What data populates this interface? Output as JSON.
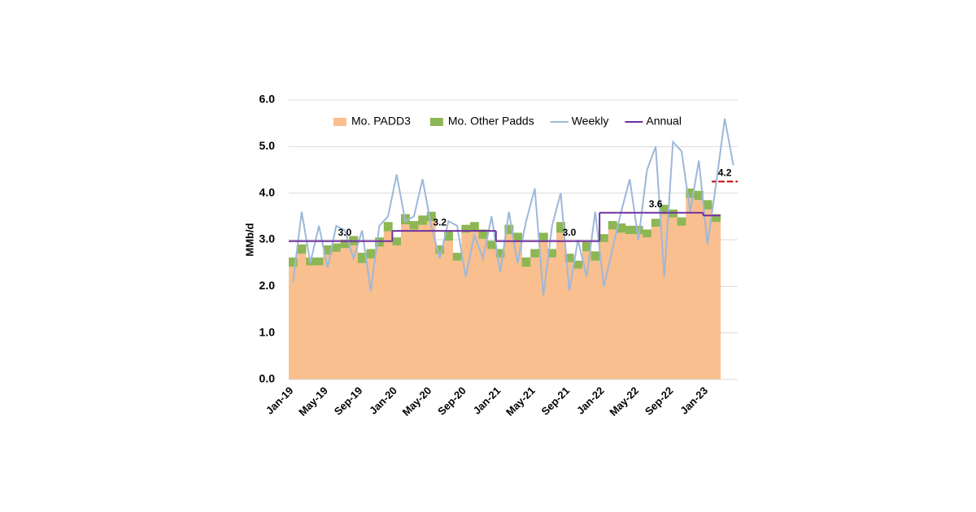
{
  "chart_data": {
    "type": "stacked-area-line",
    "y_label": "MMb/d",
    "categories": [
      "Jan-19",
      null,
      null,
      null,
      "May-19",
      null,
      null,
      null,
      "Sep-19",
      null,
      null,
      null,
      "Jan-20",
      null,
      null,
      null,
      "May-20",
      null,
      null,
      null,
      "Sep-20",
      null,
      null,
      null,
      "Jan-21",
      null,
      null,
      null,
      "May-21",
      null,
      null,
      null,
      "Sep-21",
      null,
      null,
      null,
      "Jan-22",
      null,
      null,
      null,
      "May-22",
      null,
      null,
      null,
      "Sep-22",
      null,
      null,
      null,
      "Jan-23",
      null,
      null,
      null
    ],
    "series": [
      {
        "name": "Mo. PADD3",
        "kind": "stacked-area",
        "color": "#f9bf8f",
        "values": [
          2.42,
          2.7,
          2.45,
          2.45,
          2.68,
          2.74,
          2.82,
          2.88,
          2.5,
          2.6,
          2.85,
          3.18,
          2.88,
          3.33,
          3.22,
          3.32,
          3.4,
          2.7,
          2.98,
          2.55,
          3.15,
          3.2,
          3.02,
          2.8,
          2.62,
          3.12,
          2.95,
          2.42,
          2.62,
          2.95,
          2.62,
          3.15,
          2.52,
          2.38,
          2.75,
          2.55,
          2.95,
          3.22,
          3.15,
          3.12,
          3.12,
          3.05,
          3.28,
          3.55,
          3.48,
          3.3,
          3.9,
          3.85,
          3.65,
          3.38,
          null,
          null
        ]
      },
      {
        "name": "Mo. Other Padds",
        "kind": "stacked-area",
        "color": "#8db654",
        "values": [
          0.2,
          0.2,
          0.17,
          0.17,
          0.2,
          0.18,
          0.18,
          0.2,
          0.22,
          0.2,
          0.2,
          0.2,
          0.17,
          0.22,
          0.18,
          0.2,
          0.2,
          0.18,
          0.22,
          0.17,
          0.17,
          0.18,
          0.2,
          0.18,
          0.18,
          0.2,
          0.2,
          0.2,
          0.18,
          0.2,
          0.18,
          0.23,
          0.18,
          0.17,
          0.2,
          0.2,
          0.17,
          0.18,
          0.2,
          0.18,
          0.18,
          0.17,
          0.17,
          0.2,
          0.17,
          0.18,
          0.2,
          0.2,
          0.2,
          0.17,
          null,
          null
        ]
      },
      {
        "name": "Weekly",
        "kind": "line",
        "color": "#9db8d9",
        "values": [
          2.1,
          3.6,
          2.5,
          3.3,
          2.4,
          3.3,
          3.2,
          2.6,
          3.2,
          1.9,
          3.3,
          3.5,
          4.4,
          3.4,
          3.5,
          4.3,
          3.3,
          2.6,
          3.4,
          3.3,
          2.2,
          3.1,
          2.6,
          3.5,
          2.3,
          3.6,
          2.5,
          3.4,
          4.1,
          1.8,
          3.3,
          4.0,
          1.9,
          3.0,
          2.2,
          3.6,
          2.0,
          2.8,
          3.6,
          4.3,
          3.0,
          4.5,
          5.0,
          2.2,
          5.1,
          4.9,
          3.6,
          4.7,
          2.9,
          4.2,
          5.6,
          4.6
        ]
      },
      {
        "name": "Annual",
        "kind": "step",
        "color": "#7030a0",
        "values": [
          2.97,
          2.97,
          2.97,
          2.97,
          2.97,
          2.97,
          2.97,
          2.97,
          2.97,
          2.97,
          2.97,
          2.97,
          3.19,
          3.19,
          3.19,
          3.19,
          3.19,
          3.19,
          3.19,
          3.19,
          3.19,
          3.19,
          3.19,
          3.19,
          2.97,
          2.97,
          2.97,
          2.97,
          2.97,
          2.97,
          2.97,
          2.97,
          2.97,
          2.97,
          2.97,
          2.97,
          3.58,
          3.58,
          3.58,
          3.58,
          3.58,
          3.58,
          3.58,
          3.58,
          3.58,
          3.58,
          3.58,
          3.58,
          3.52,
          3.52,
          null,
          null
        ],
        "value_labels": [
          null,
          null,
          null,
          null,
          null,
          null,
          "3.0",
          null,
          null,
          null,
          null,
          null,
          null,
          null,
          null,
          null,
          null,
          "3.2",
          null,
          null,
          null,
          null,
          null,
          null,
          null,
          null,
          null,
          null,
          null,
          null,
          null,
          null,
          "3.0",
          null,
          null,
          null,
          null,
          null,
          null,
          null,
          null,
          null,
          "3.6",
          null,
          null,
          null,
          null,
          null,
          null,
          null,
          null,
          null
        ]
      },
      {
        "kind": "step",
        "color": "#c00000",
        "dashed": true,
        "values": [
          null,
          null,
          null,
          null,
          null,
          null,
          null,
          null,
          null,
          null,
          null,
          null,
          null,
          null,
          null,
          null,
          null,
          null,
          null,
          null,
          null,
          null,
          null,
          null,
          null,
          null,
          null,
          null,
          null,
          null,
          null,
          null,
          null,
          null,
          null,
          null,
          null,
          null,
          null,
          null,
          null,
          null,
          null,
          null,
          null,
          null,
          null,
          null,
          null,
          4.25,
          4.25,
          4.25
        ],
        "value_labels": [
          null,
          null,
          null,
          null,
          null,
          null,
          null,
          null,
          null,
          null,
          null,
          null,
          null,
          null,
          null,
          null,
          null,
          null,
          null,
          null,
          null,
          null,
          null,
          null,
          null,
          null,
          null,
          null,
          null,
          null,
          null,
          null,
          null,
          null,
          null,
          null,
          null,
          null,
          null,
          null,
          null,
          null,
          null,
          null,
          null,
          null,
          null,
          null,
          null,
          null,
          "4.2",
          null
        ]
      }
    ],
    "ylim": [
      0,
      6
    ],
    "yticks": [
      {
        "value": 0,
        "label": "0.0"
      },
      {
        "value": 1,
        "label": "1.0"
      },
      {
        "value": 2,
        "label": "2.0"
      },
      {
        "value": 3,
        "label": "3.0"
      },
      {
        "value": 4,
        "label": "4.0"
      },
      {
        "value": 5,
        "label": "5.0"
      },
      {
        "value": 6,
        "label": "6.0"
      }
    ],
    "grid": true,
    "legend": "top"
  }
}
